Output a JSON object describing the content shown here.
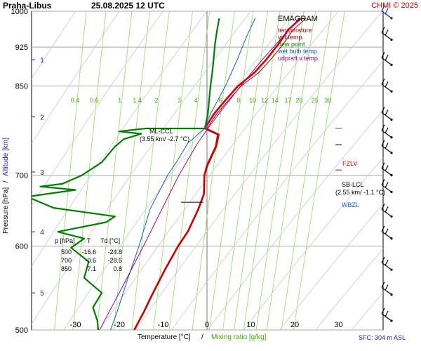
{
  "header": {
    "station": "Praha-Libus",
    "datetime": "25.08.2025 12 UTC",
    "credit": "CHMI © 2025"
  },
  "legend": {
    "title": "EMAGRAM",
    "items": [
      {
        "label": "temperature",
        "color": "#e00000"
      },
      {
        "label": "virt.temp.",
        "color": "#b00000"
      },
      {
        "label": "dew point",
        "color": "#008000"
      },
      {
        "label": "wet bulb temp.",
        "color": "#1060d0"
      },
      {
        "label": "udpraft v.temp.",
        "color": "#a000a0"
      }
    ]
  },
  "footer": {
    "xlabel_temp": "Temperature [°C]",
    "separator": "/",
    "xlabel_mixing": "Mixing ratio [g/kg]",
    "sfc": "SFC: 304 m ASL"
  },
  "ylabel": {
    "pressure": "Pressure [hPa]",
    "separator": "/",
    "altitude": "Altitude [km]"
  },
  "table": {
    "headers": [
      "p [hPa]",
      "T",
      "Td [°C]"
    ],
    "rows": [
      [
        "500",
        "-16.6",
        "-24.8"
      ],
      [
        "700",
        "-0.6",
        "-28.5"
      ],
      [
        "850",
        "7.1",
        "0.8"
      ]
    ]
  },
  "annotations": {
    "ml_ccl": "ML-CCL",
    "ml_ccl_detail": "(3.55 km/ -2.7 °C)",
    "fzlv": "FZLV",
    "sb_lcl": "SB-LCL",
    "sb_lcl_detail": "(2.55 km/ -1.1 °C)",
    "wbzl": "WBZL"
  },
  "colors": {
    "temperature": "#e00000",
    "virt_temp": "#b00000",
    "dew_point": "#008000",
    "wet_bulb": "#1060d0",
    "parcel": "#a000a0",
    "mixing_lines": "#90dd60",
    "adiabats": "#c8c8c8",
    "altitude": "#1a1ac8",
    "fzlv": "#cc0000",
    "wbzl": "#1060d0"
  },
  "chart_data": {
    "type": "line",
    "title": "Praha-Libus 25.08.2025 12 UTC",
    "xlabel": "Temperature [°C] / Mixing ratio [g/kg]",
    "ylabel": "Pressure [hPa] / Altitude [km]",
    "xlim": [
      -40,
      40
    ],
    "ylim": [
      1000,
      500
    ],
    "y_scale": "log",
    "x_ticks": [
      -30,
      -20,
      -10,
      0,
      10,
      20,
      30
    ],
    "y_ticks": [
      500,
      600,
      700,
      850,
      925,
      1000
    ],
    "altitude_ticks": [
      {
        "km": 1,
        "p": 900
      },
      {
        "km": 2,
        "p": 795
      },
      {
        "km": 3,
        "p": 705
      },
      {
        "km": 4,
        "p": 619
      },
      {
        "km": 5,
        "p": 542
      }
    ],
    "mixing_ratio_labels": [
      "0.4",
      "0.6",
      "1",
      "1.4",
      "2",
      "3",
      "4",
      "6",
      "8",
      "10",
      "12",
      "14",
      "17",
      "20",
      "25",
      "30"
    ],
    "series": [
      {
        "name": "temperature",
        "points": [
          {
            "p": 985,
            "t": 21.4
          },
          {
            "p": 960,
            "t": 18.5
          },
          {
            "p": 930,
            "t": 16.2
          },
          {
            "p": 900,
            "t": 13.5
          },
          {
            "p": 875,
            "t": 10.8
          },
          {
            "p": 850,
            "t": 7.1
          },
          {
            "p": 825,
            "t": 4.3
          },
          {
            "p": 800,
            "t": 1.6
          },
          {
            "p": 775,
            "t": -0.5
          },
          {
            "p": 765,
            "t": 2.5
          },
          {
            "p": 745,
            "t": 2.0
          },
          {
            "p": 715,
            "t": 0.0
          },
          {
            "p": 700,
            "t": -0.6
          },
          {
            "p": 672,
            "t": -0.7
          },
          {
            "p": 650,
            "t": -2.0
          },
          {
            "p": 620,
            "t": -4.3
          },
          {
            "p": 600,
            "t": -6.6
          },
          {
            "p": 570,
            "t": -9.6
          },
          {
            "p": 540,
            "t": -12.5
          },
          {
            "p": 520,
            "t": -14.4
          },
          {
            "p": 500,
            "t": -16.6
          }
        ]
      },
      {
        "name": "virt.temp.",
        "points": [
          {
            "p": 985,
            "t": 22.6
          },
          {
            "p": 960,
            "t": 19.6
          },
          {
            "p": 930,
            "t": 17.3
          },
          {
            "p": 900,
            "t": 14.5
          },
          {
            "p": 875,
            "t": 11.8
          },
          {
            "p": 850,
            "t": 7.8
          },
          {
            "p": 825,
            "t": 5.0
          },
          {
            "p": 800,
            "t": 2.2
          },
          {
            "p": 775,
            "t": 0.0
          },
          {
            "p": 765,
            "t": 2.8
          },
          {
            "p": 745,
            "t": 2.2
          },
          {
            "p": 715,
            "t": 0.2
          },
          {
            "p": 700,
            "t": -0.5
          },
          {
            "p": 672,
            "t": -0.6
          },
          {
            "p": 650,
            "t": -1.9
          },
          {
            "p": 620,
            "t": -4.2
          },
          {
            "p": 600,
            "t": -6.5
          },
          {
            "p": 570,
            "t": -9.5
          },
          {
            "p": 540,
            "t": -12.4
          },
          {
            "p": 520,
            "t": -14.3
          },
          {
            "p": 500,
            "t": -16.5
          }
        ]
      },
      {
        "name": "dew point",
        "points": [
          {
            "p": 985,
            "t": 2.8
          },
          {
            "p": 960,
            "t": 2.3
          },
          {
            "p": 930,
            "t": 1.8
          },
          {
            "p": 900,
            "t": 1.5
          },
          {
            "p": 875,
            "t": 1.2
          },
          {
            "p": 850,
            "t": 0.8
          },
          {
            "p": 825,
            "t": 0.5
          },
          {
            "p": 800,
            "t": 0.2
          },
          {
            "p": 775,
            "t": -0.5
          },
          {
            "p": 775,
            "t": -14.0
          },
          {
            "p": 770,
            "t": -20.0
          },
          {
            "p": 766,
            "t": -15.0
          },
          {
            "p": 757,
            "t": -19.0
          },
          {
            "p": 745,
            "t": -21.0
          },
          {
            "p": 720,
            "t": -24.0
          },
          {
            "p": 700,
            "t": -28.5
          },
          {
            "p": 687,
            "t": -33.0
          },
          {
            "p": 683,
            "t": -38.0
          },
          {
            "p": 678,
            "t": -30.0
          },
          {
            "p": 668,
            "t": -41.0
          },
          {
            "p": 652,
            "t": -35.0
          },
          {
            "p": 640,
            "t": -21.0
          },
          {
            "p": 632,
            "t": -23.0
          },
          {
            "p": 619,
            "t": -34.0
          },
          {
            "p": 610,
            "t": -28.0
          },
          {
            "p": 598,
            "t": -31.0
          },
          {
            "p": 580,
            "t": -27.0
          },
          {
            "p": 560,
            "t": -28.0
          },
          {
            "p": 542,
            "t": -24.0
          },
          {
            "p": 525,
            "t": -26.0
          },
          {
            "p": 510,
            "t": -25.0
          },
          {
            "p": 500,
            "t": -24.8
          }
        ]
      },
      {
        "name": "wet bulb temp.",
        "points": [
          {
            "p": 985,
            "t": 11.0
          },
          {
            "p": 950,
            "t": 9.2
          },
          {
            "p": 900,
            "t": 6.9
          },
          {
            "p": 850,
            "t": 4.2
          },
          {
            "p": 800,
            "t": 0.8
          },
          {
            "p": 775,
            "t": -0.6
          },
          {
            "p": 750,
            "t": -4.4
          },
          {
            "p": 720,
            "t": -7.0
          },
          {
            "p": 700,
            "t": -9.0
          },
          {
            "p": 650,
            "t": -13.0
          },
          {
            "p": 600,
            "t": -15.5
          },
          {
            "p": 560,
            "t": -18.0
          },
          {
            "p": 520,
            "t": -20.5
          },
          {
            "p": 500,
            "t": -22.0
          }
        ]
      },
      {
        "name": "udpraft v.temp.",
        "points": [
          {
            "p": 985,
            "t": 21.0
          },
          {
            "p": 900,
            "t": 12.6
          },
          {
            "p": 850,
            "t": 7.7
          },
          {
            "p": 800,
            "t": 2.7
          },
          {
            "p": 775,
            "t": 0.2
          },
          {
            "p": 750,
            "t": -2.2
          },
          {
            "p": 700,
            "t": -6.4
          },
          {
            "p": 650,
            "t": -10.3
          },
          {
            "p": 600,
            "t": -14.5
          },
          {
            "p": 550,
            "t": -19.2
          },
          {
            "p": 500,
            "t": -24.5
          }
        ]
      }
    ],
    "levels": [
      {
        "name": "ML-CCL",
        "p": 660,
        "t": -2.7,
        "altitude_km": 3.55
      },
      {
        "name": "FZLV",
        "p": 708
      },
      {
        "name": "SB-LCL",
        "p": 748,
        "t": -1.1,
        "altitude_km": 2.55
      },
      {
        "name": "WBZL",
        "p": 775
      }
    ],
    "wind_barbs": [
      {
        "p": 510
      },
      {
        "p": 540
      },
      {
        "p": 570
      },
      {
        "p": 610
      },
      {
        "p": 640
      },
      {
        "p": 675
      },
      {
        "p": 700
      },
      {
        "p": 735
      },
      {
        "p": 760
      },
      {
        "p": 790
      },
      {
        "p": 840
      },
      {
        "p": 890
      },
      {
        "p": 940
      },
      {
        "p": 985
      }
    ]
  }
}
